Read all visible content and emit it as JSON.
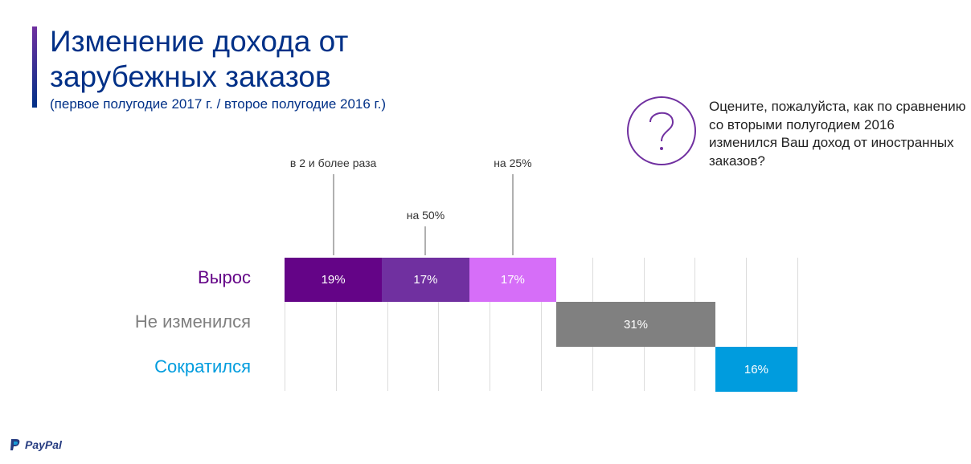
{
  "header": {
    "title": "Изменение дохода от зарубежных заказов",
    "subtitle": "(первое полугодие 2017 г. / второе полугодие 2016 г.)"
  },
  "question": "Оцените, пожалуйста, как по сравнению со вторыми полугодием 2016 изменился Ваш доход от иностранных заказов?",
  "logo": "PayPal",
  "chart_data": {
    "type": "bar",
    "subtype": "waterfall-stacked-horizontal",
    "xlim": [
      0,
      100
    ],
    "grid_step": 10,
    "categories": [
      "Вырос",
      "Не изменился",
      "Сократился"
    ],
    "category_colors": [
      "#640487",
      "#808080",
      "#009cde"
    ],
    "segments": [
      {
        "category": "Вырос",
        "name": "в 2 и более раза",
        "value": 19,
        "label": "19%",
        "color": "#640487"
      },
      {
        "category": "Вырос",
        "name": "на 50%",
        "value": 17,
        "label": "17%",
        "color": "#7030a0"
      },
      {
        "category": "Вырос",
        "name": "на 25%",
        "value": 17,
        "label": "17%",
        "color": "#d66ef8"
      },
      {
        "category": "Не изменился",
        "name": "",
        "value": 31,
        "label": "31%",
        "color": "#808080"
      },
      {
        "category": "Сократился",
        "name": "",
        "value": 16,
        "label": "16%",
        "color": "#009cde"
      }
    ],
    "annotations": [
      "в 2 и более раза",
      "на 50%",
      "на 25%"
    ]
  }
}
